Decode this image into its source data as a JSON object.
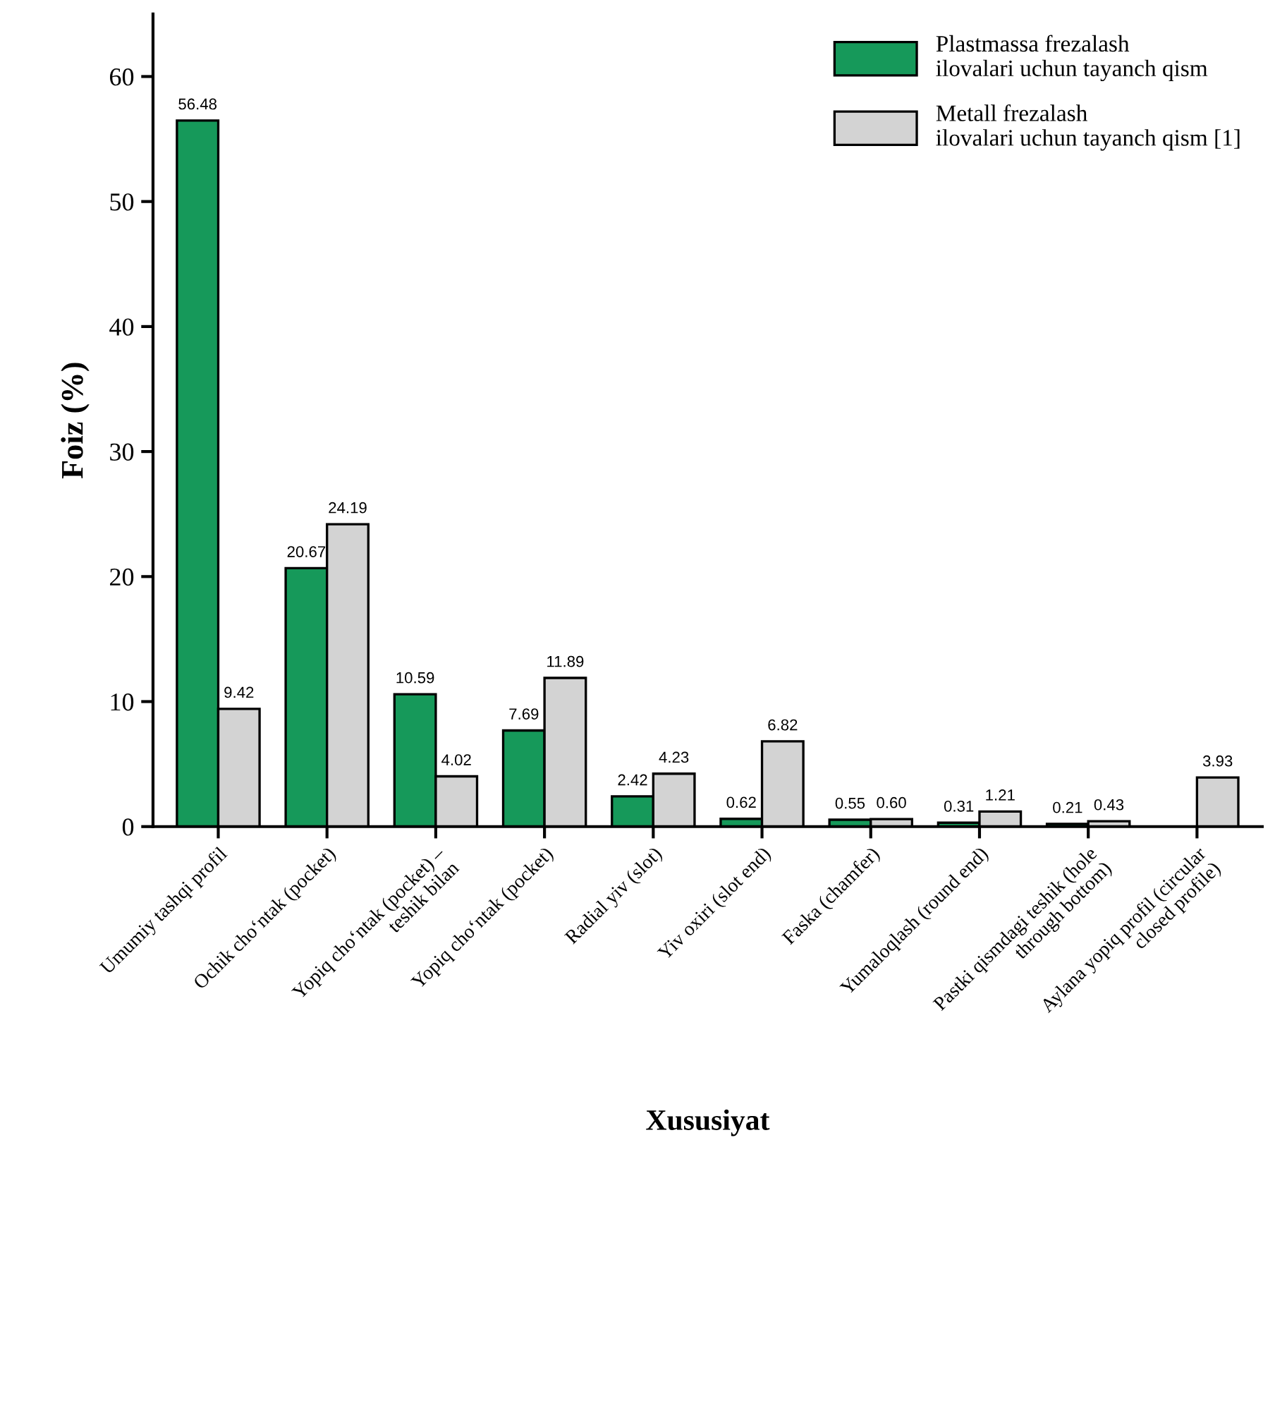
{
  "chart_data": {
    "type": "bar",
    "xlabel": "Xususiyat",
    "ylabel": "Foiz (%)",
    "categories": [
      "Umumiy tashqi profil",
      "Ochik cho‘ntak (pocket)",
      "Yopiq cho‘ntak (pocket) –\nteshik bilan",
      "Yopiq cho‘ntak (pocket)",
      "Radial yiv (slot)",
      "Yiv oxiri (slot end)",
      "Faska (chamfer)",
      "Yumaloqlash (round end)",
      "Pastki qismdagi teshik (hole\nthrough bottom)",
      "Aylana yopiq profil (circular\nclosed profile)"
    ],
    "series": [
      {
        "name": "Plastmassa frezalash\nilovalari uchun tayanch qism",
        "color": "#16995a",
        "values": [
          56.48,
          20.67,
          10.59,
          7.69,
          2.42,
          0.62,
          0.55,
          0.31,
          0.21,
          null
        ],
        "value_labels": [
          "56.48",
          "20.67",
          "10.59",
          "7.69",
          "2.42",
          "0.62",
          "0.55",
          "0.31",
          "0.21",
          null
        ]
      },
      {
        "name": "Metall frezalash\nilovalari uchun tayanch qism [1]",
        "color": "#d3d3d3",
        "values": [
          9.42,
          24.19,
          4.02,
          11.89,
          4.23,
          6.82,
          0.6,
          1.21,
          0.43,
          3.93
        ],
        "value_labels": [
          "9.42",
          "24.19",
          "4.02",
          "11.89",
          "4.23",
          "6.82",
          "0.60",
          "1.21",
          "0.43",
          "3.93"
        ]
      }
    ],
    "ylim": [
      0,
      65
    ],
    "yticks": [
      0,
      10,
      20,
      30,
      40,
      50,
      60
    ],
    "legend": "top right",
    "grid": false
  }
}
